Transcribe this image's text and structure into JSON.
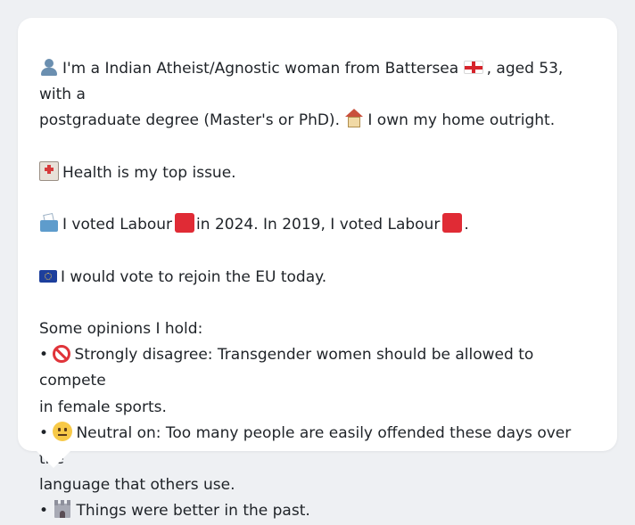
{
  "profile": {
    "intro_line1": "I'm a Indian Atheist/Agnostic woman from Battersea",
    "intro_line1b": ", aged 53, with a",
    "intro_line2": "postgraduate degree (Master's or PhD).",
    "intro_line2b": "I own my home outright.",
    "health": "Health is my top issue.",
    "vote_a": "I voted Labour",
    "vote_b": "in 2024. In 2019, I voted Labour",
    "vote_c": ".",
    "eu": "I would vote to rejoin the EU today.",
    "opinions_heading": "Some opinions I hold:",
    "opinion1_line1": "Strongly disagree: Transgender women should be allowed to compete",
    "opinion1_line2": "in female sports.",
    "opinion2_line1": "Neutral on: Too many people are easily offended these days over the",
    "opinion2_line2": "language that others use.",
    "opinion3": "Things were better in the past.",
    "bullet": "•"
  },
  "icons": {
    "person": "person-icon",
    "england_flag": "england-flag-icon",
    "house": "house-icon",
    "hospital": "hospital-icon",
    "ballot_box": "ballot-box-icon",
    "labour_square": "red-square-icon",
    "eu_flag": "eu-flag-icon",
    "prohibited": "prohibited-icon",
    "neutral_face": "neutral-face-icon",
    "castle": "castle-icon"
  },
  "colors": {
    "labour_red": "#e02b35",
    "text": "#1f2328",
    "card": "#ffffff",
    "background": "#eef0f3"
  }
}
